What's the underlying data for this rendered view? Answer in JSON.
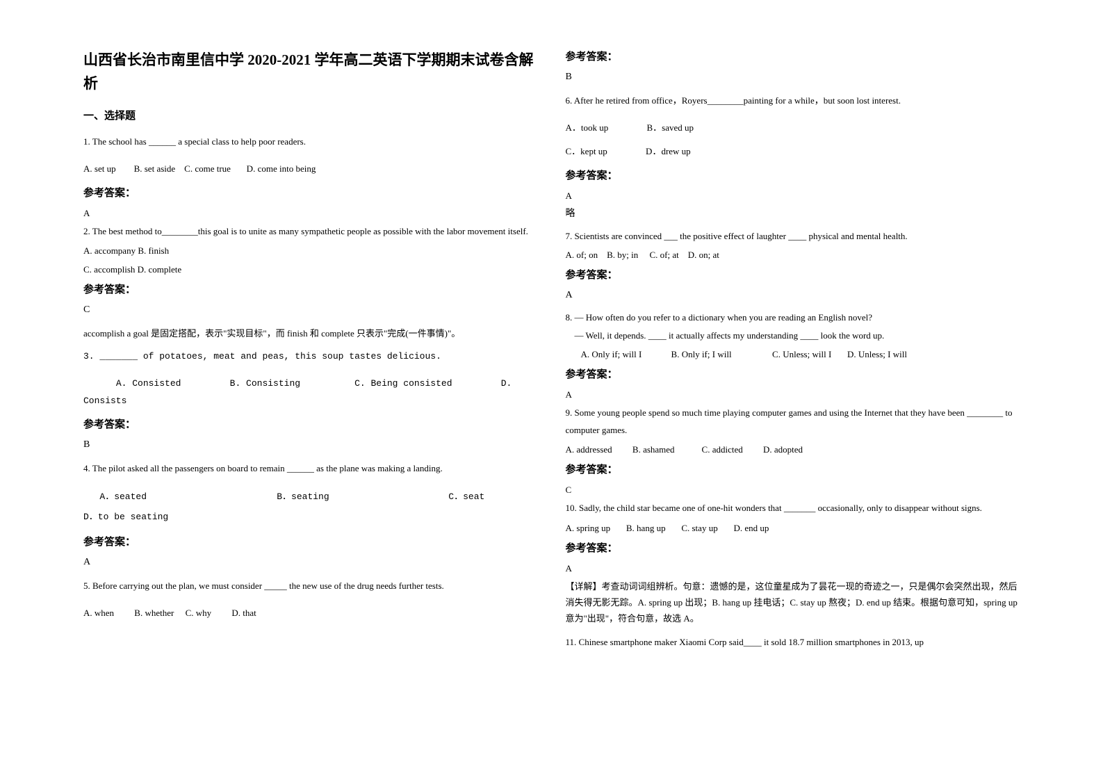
{
  "title": "山西省长治市南里信中学 2020-2021 学年高二英语下学期期末试卷含解析",
  "section1": "一、选择题",
  "left": {
    "q1": "1.  The school has ______ a special class to help poor readers.",
    "q1_opts": "A. set up        B. set aside    C. come true       D. come into being",
    "ans_label": "参考答案：",
    "a1": "A",
    "q2": "2. The best method to________this goal is to unite as many sympathetic people as possible with the labor movement itself.",
    "q2_optsA": "A. accompany    B. finish",
    "q2_optsB": "C. accomplish    D. complete",
    "a2": "C",
    "exp2": "accomplish a goal 是固定搭配，表示\"实现目标\"，而 finish 和 complete 只表示\"完成(一件事情)\"。",
    "q3": "3. _______ of potatoes, meat and peas, this soup tastes delicious.",
    "q3_opts": "      A. Consisted         B. Consisting          C. Being consisted         D. Consists",
    "a3": "B",
    "q4": "4. The pilot asked all the passengers on board to remain ______ as the plane was making a           landing.",
    "q4_optsA": "   A．seated                        B．seating                      C．seat                              D．to be seating",
    "a4": "A",
    "q5": "5. Before carrying out the plan, we must consider _____ the new use of the drug needs further tests.",
    "q5_opts": "A. when         B. whether     C. why         D. that"
  },
  "right": {
    "ans_label": "参考答案：",
    "a5": "B",
    "q6": "6. After he retired from office，Royers________painting for a while，but soon lost interest.",
    "q6_optsA": "A．took up                 B．saved up",
    "q6_optsB": "C．kept up                 D．drew up",
    "a6": "A",
    "a6_note": "略",
    "q7": "7. Scientists are convinced ___ the positive effect of laughter ____ physical and mental health.",
    "q7_opts": "A. of; on    B. by; in     C. of; at    D. on; at",
    "a7": "A",
    "q8a": "8. — How often do you refer to a dictionary when you are reading an English novel?",
    "q8b": "    — Well, it depends. ____ it actually affects my understanding ____ look the word up.",
    "q8_opts": "       A. Only if; will I             B. Only if; I will                  C. Unless; will I       D. Unless; I will",
    "a8": "A",
    "q9": "9. Some young people spend so much time playing computer games and using the Internet that they have been ________ to computer games.",
    "q9_opts": "A. addressed         B. ashamed            C. addicted         D. adopted",
    "a9": "C",
    "q10": "10. Sadly, the child star became one of one-hit wonders that _______ occasionally, only to disappear without signs.",
    "q10_opts": "A. spring up       B. hang up       C. stay up       D. end up",
    "a10": "A",
    "exp10": "【详解】考查动词词组辨析。句意：遗憾的是，这位童星成为了昙花一现的奇迹之一，只是偶尔会突然出现，然后消失得无影无踪。A. spring up 出现；B. hang up 挂电话；C. stay up 熬夜；D. end up 结束。根据句意可知，spring up 意为\"出现\"，符合句意，故选 A。",
    "q11": "11. Chinese smartphone maker Xiaomi Corp said____ it sold 18.7 million smartphones in 2013, up"
  }
}
